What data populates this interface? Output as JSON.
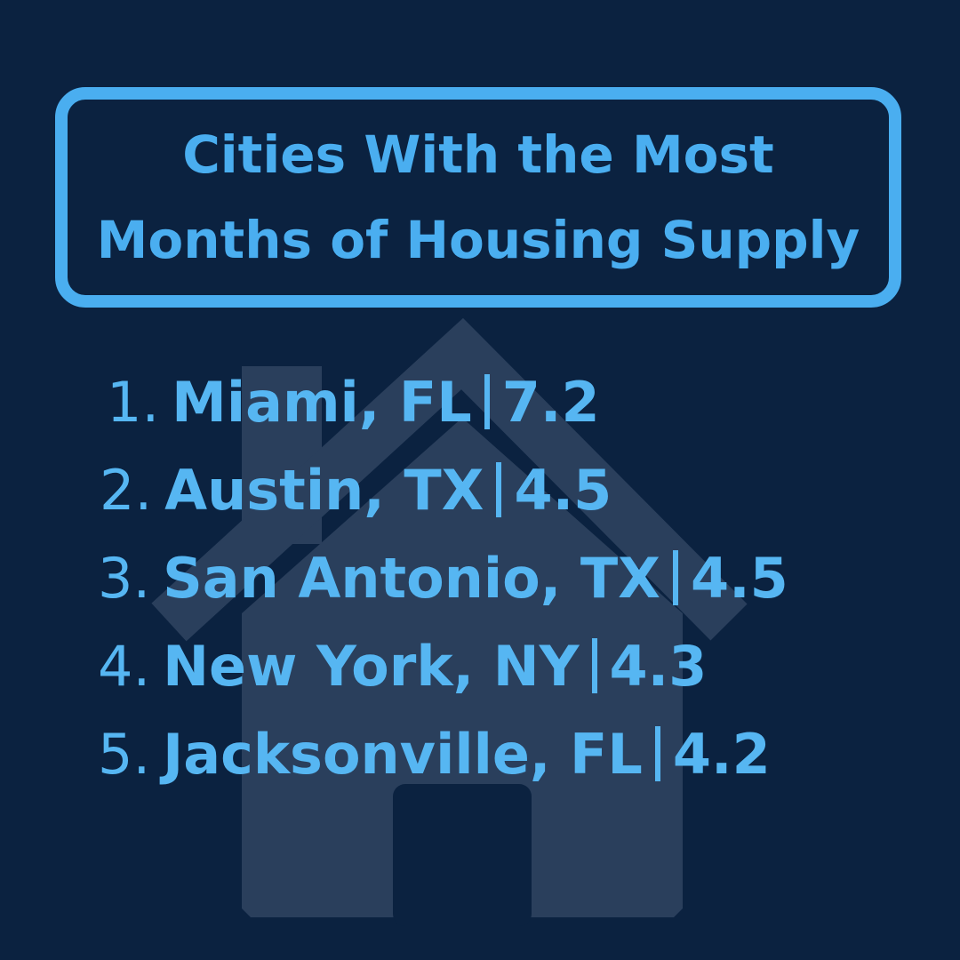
{
  "title": [
    "Cities With the Most",
    "Months of Housing Supply"
  ],
  "items": [
    {
      "rank": "1.",
      "city": "Miami, FL",
      "value": 7.2
    },
    {
      "rank": "2.",
      "city": "Austin, TX",
      "value": 4.5
    },
    {
      "rank": "3.",
      "city": "San Antonio, TX",
      "value": 4.5
    },
    {
      "rank": "4.",
      "city": "New York, NY",
      "value": 4.3
    },
    {
      "rank": "5.",
      "city": "Jacksonville, FL",
      "value": 4.2
    }
  ]
}
